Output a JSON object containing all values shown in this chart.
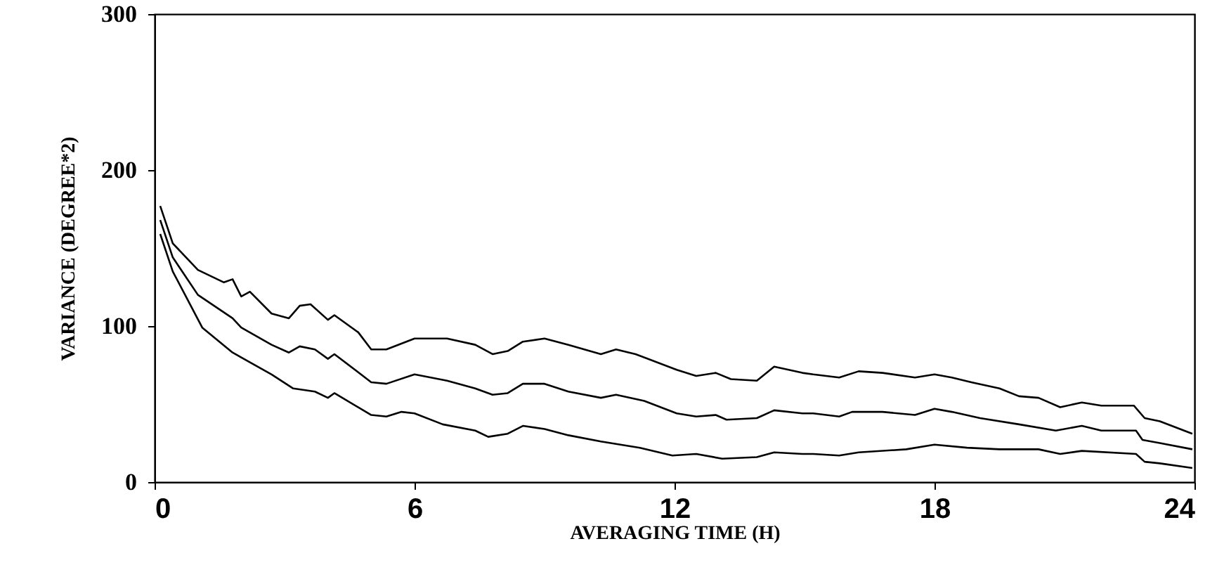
{
  "chart_data": {
    "type": "line",
    "xlabel": "AVERAGING TIME (H)",
    "ylabel": "VARIANCE (DEGREE*2)",
    "xlim": [
      0,
      24
    ],
    "xticks": [
      0,
      6,
      12,
      18,
      24
    ],
    "ylim": [
      0,
      300
    ],
    "yticks": [
      0,
      100,
      200,
      300
    ],
    "grid": false,
    "marker": "none",
    "line_style": "solid",
    "series": [
      {
        "color": "#000000",
        "x": [
          0.13,
          0.42,
          1.0,
          1.6,
          1.8,
          2.0,
          2.2,
          2.7,
          3.1,
          3.35,
          3.6,
          4.0,
          4.15,
          4.7,
          5.0,
          5.35,
          6.0,
          6.75,
          7.4,
          7.8,
          8.15,
          8.5,
          9.0,
          9.55,
          10.3,
          10.65,
          11.1,
          12.05,
          12.5,
          12.95,
          13.3,
          13.9,
          14.3,
          14.95,
          15.2,
          15.8,
          16.25,
          16.8,
          17.55,
          18.0,
          18.4,
          18.85,
          19.5,
          19.95,
          20.4,
          20.9,
          21.4,
          21.85,
          22.6,
          22.85,
          23.2,
          23.95
        ],
        "values": [
          177,
          153,
          136,
          128,
          130,
          119,
          122,
          108,
          105,
          113,
          114,
          104,
          107,
          96,
          85,
          85,
          92,
          92,
          88,
          82,
          84,
          90,
          92,
          88,
          82,
          85,
          82,
          72,
          68,
          70,
          66,
          65,
          74,
          70,
          69,
          67,
          71,
          70,
          67,
          69,
          67,
          64,
          60,
          55,
          54,
          48,
          51,
          49,
          49,
          41,
          39,
          31
        ]
      },
      {
        "color": "#000000",
        "x": [
          0.13,
          0.42,
          1.0,
          1.8,
          2.0,
          2.7,
          3.1,
          3.35,
          3.7,
          4.0,
          4.15,
          5.0,
          5.35,
          6.0,
          6.75,
          7.4,
          7.8,
          8.15,
          8.5,
          9.0,
          9.55,
          10.3,
          10.65,
          11.3,
          12.05,
          12.5,
          12.95,
          13.2,
          13.9,
          14.3,
          14.95,
          15.2,
          15.8,
          16.1,
          16.8,
          17.55,
          18.0,
          18.4,
          19.05,
          19.95,
          20.8,
          21.4,
          21.85,
          22.65,
          22.8,
          23.2,
          23.95
        ],
        "values": [
          168,
          144,
          120,
          105,
          99,
          88,
          83,
          87,
          85,
          79,
          82,
          64,
          63,
          69,
          65,
          60,
          56,
          57,
          63,
          63,
          58,
          54,
          56,
          52,
          44,
          42,
          43,
          40,
          41,
          46,
          44,
          44,
          42,
          45,
          45,
          43,
          47,
          45,
          41,
          37,
          33,
          36,
          33,
          33,
          27,
          25,
          21
        ]
      },
      {
        "color": "#000000",
        "x": [
          0.13,
          0.42,
          1.1,
          1.8,
          2.7,
          3.2,
          3.7,
          4.0,
          4.15,
          5.0,
          5.35,
          5.7,
          6.0,
          6.65,
          7.4,
          7.7,
          8.15,
          8.5,
          9.0,
          9.55,
          10.3,
          11.2,
          11.95,
          12.5,
          13.1,
          13.9,
          14.3,
          14.95,
          15.2,
          15.8,
          16.25,
          17.35,
          18.0,
          18.75,
          19.5,
          20.4,
          20.9,
          21.4,
          22.65,
          22.85,
          23.2,
          23.95
        ],
        "values": [
          159,
          135,
          99,
          83,
          69,
          60,
          58,
          54,
          57,
          43,
          42,
          45,
          44,
          37,
          33,
          29,
          31,
          36,
          34,
          30,
          26,
          22,
          17,
          18,
          15,
          16,
          19,
          18,
          18,
          17,
          19,
          21,
          24,
          22,
          21,
          21,
          18,
          20,
          18,
          13,
          12,
          9
        ]
      }
    ]
  }
}
